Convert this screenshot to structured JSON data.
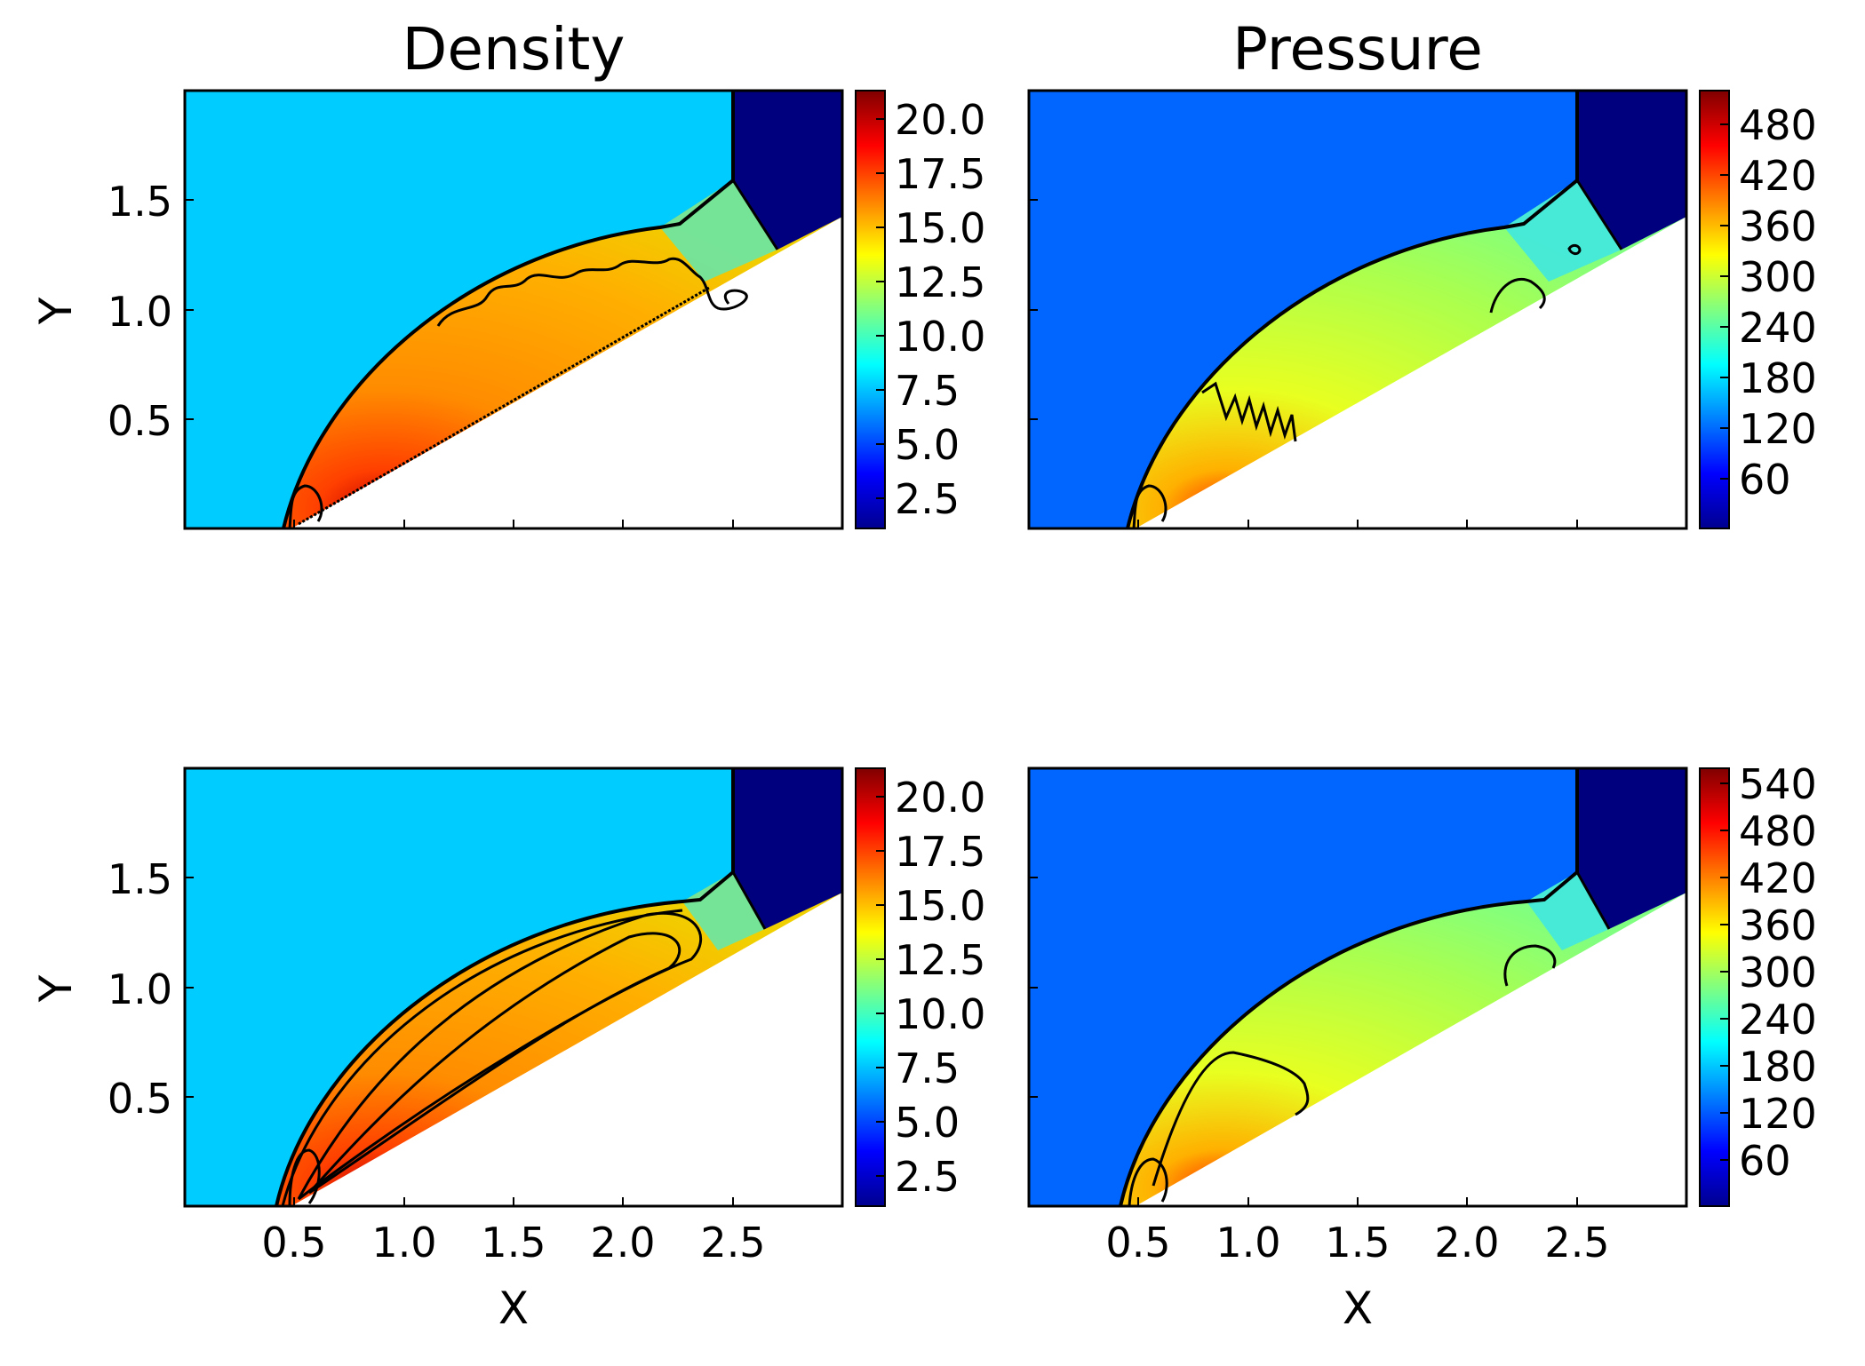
{
  "colormap": [
    "#00008f",
    "#0000ff",
    "#0080ff",
    "#00ffff",
    "#80ff80",
    "#ffff00",
    "#ff8000",
    "#ff0000",
    "#800000"
  ],
  "colors": {
    "density_background": "#00ccff",
    "pressure_background": "#0066ff",
    "inflow_region": "#00007f",
    "contour": "#000000"
  },
  "chart_data": [
    {
      "type": "heatmap",
      "title": "Density",
      "xlabel": "",
      "ylabel": "Y",
      "xlim": [
        0,
        3
      ],
      "ylim": [
        0,
        2
      ],
      "xticks": [
        "0.5",
        "1.0",
        "1.5",
        "2.0",
        "2.5"
      ],
      "xtick_values": [
        0.5,
        1.0,
        1.5,
        2.0,
        2.5
      ],
      "show_xticklabels": false,
      "yticks": [
        "0.5",
        "1.0",
        "1.5"
      ],
      "ytick_values": [
        0.5,
        1.0,
        1.5
      ],
      "colorbar": {
        "ticks": [
          "2.5",
          "5.0",
          "7.5",
          "10.0",
          "12.5",
          "15.0",
          "17.5",
          "20.0"
        ],
        "values": [
          2.5,
          5.0,
          7.5,
          10.0,
          12.5,
          15.0,
          17.5,
          20.0
        ],
        "range": [
          1.4,
          21.6
        ]
      },
      "grid": false
    },
    {
      "type": "heatmap",
      "title": "Pressure",
      "xlabel": "",
      "ylabel": "",
      "xlim": [
        0,
        3
      ],
      "ylim": [
        0,
        2
      ],
      "xticks": [
        "0.5",
        "1.0",
        "1.5",
        "2.0",
        "2.5"
      ],
      "xtick_values": [
        0.5,
        1.0,
        1.5,
        2.0,
        2.5
      ],
      "show_xticklabels": false,
      "yticks": [
        "0.5",
        "1.0",
        "1.5"
      ],
      "ytick_values": [
        0.5,
        1.0,
        1.5
      ],
      "show_yticklabels": false,
      "colorbar": {
        "ticks": [
          "60",
          "120",
          "180",
          "240",
          "300",
          "360",
          "420",
          "480"
        ],
        "values": [
          60,
          120,
          180,
          240,
          300,
          360,
          420,
          480
        ],
        "range": [
          1,
          521
        ]
      },
      "grid": false
    },
    {
      "type": "heatmap",
      "title": "",
      "xlabel": "X",
      "ylabel": "Y",
      "xlim": [
        0,
        3
      ],
      "ylim": [
        0,
        2
      ],
      "xticks": [
        "0.5",
        "1.0",
        "1.5",
        "2.0",
        "2.5"
      ],
      "xtick_values": [
        0.5,
        1.0,
        1.5,
        2.0,
        2.5
      ],
      "show_xticklabels": true,
      "yticks": [
        "0.5",
        "1.0",
        "1.5"
      ],
      "ytick_values": [
        0.5,
        1.0,
        1.5
      ],
      "colorbar": {
        "ticks": [
          "2.5",
          "5.0",
          "7.5",
          "10.0",
          "12.5",
          "15.0",
          "17.5",
          "20.0"
        ],
        "values": [
          2.5,
          5.0,
          7.5,
          10.0,
          12.5,
          15.0,
          17.5,
          20.0
        ],
        "range": [
          1.4,
          21.6
        ]
      },
      "grid": false
    },
    {
      "type": "heatmap",
      "title": "",
      "xlabel": "X",
      "ylabel": "",
      "xlim": [
        0,
        3
      ],
      "ylim": [
        0,
        2
      ],
      "xticks": [
        "0.5",
        "1.0",
        "1.5",
        "2.0",
        "2.5"
      ],
      "xtick_values": [
        0.5,
        1.0,
        1.5,
        2.0,
        2.5
      ],
      "show_xticklabels": true,
      "yticks": [
        "0.5",
        "1.0",
        "1.5"
      ],
      "ytick_values": [
        0.5,
        1.0,
        1.5
      ],
      "show_yticklabels": false,
      "colorbar": {
        "ticks": [
          "60",
          "120",
          "180",
          "240",
          "300",
          "360",
          "420",
          "480",
          "540"
        ],
        "values": [
          60,
          120,
          180,
          240,
          300,
          360,
          420,
          480,
          540
        ],
        "range": [
          1,
          560
        ]
      },
      "grid": false
    }
  ]
}
